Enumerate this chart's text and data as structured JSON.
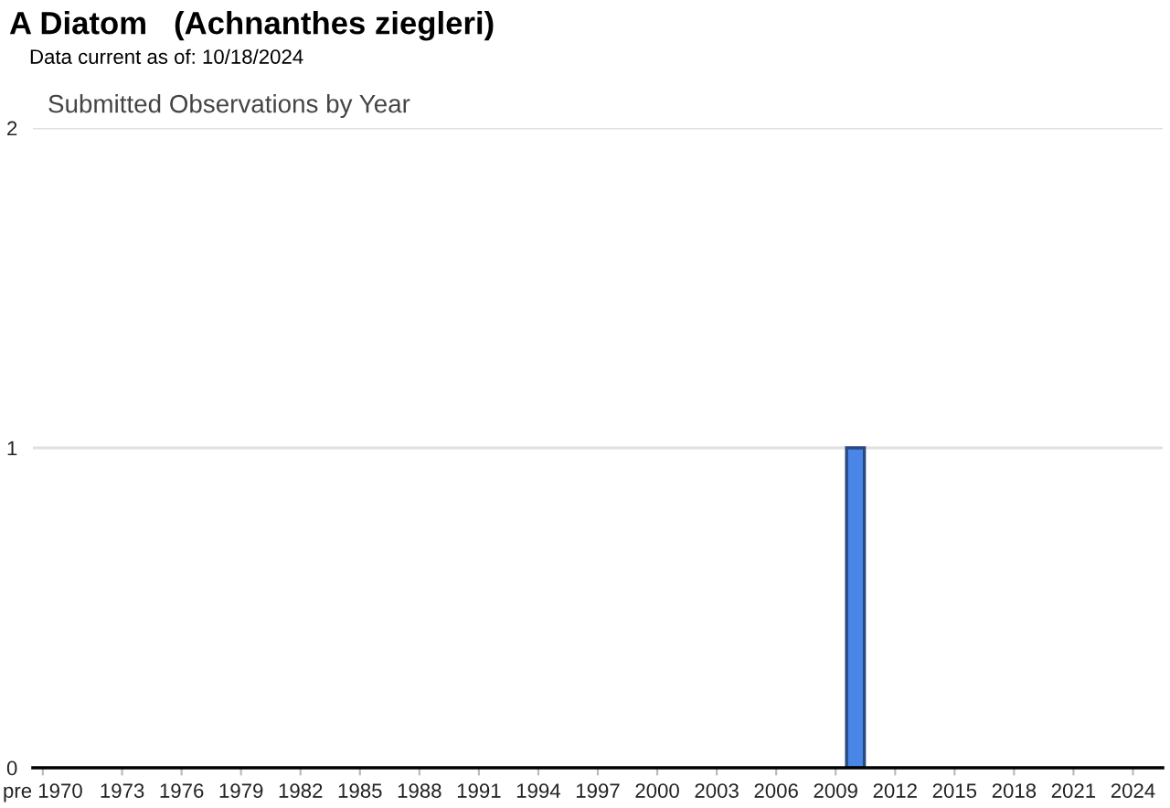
{
  "chart_data": {
    "type": "bar",
    "title": "A Diatom   (Achnanthes ziegleri)",
    "subtitle": "Submitted Observations by Year",
    "annotations": [
      "Data current as of: 10/18/2024"
    ],
    "x": [
      2010
    ],
    "values": [
      1
    ],
    "color": "#4a86e8",
    "xlim": [
      1968.5,
      2025.5
    ],
    "xticks": [
      {
        "value": 1969,
        "label": "pre 1970"
      },
      1973,
      1976,
      1979,
      1982,
      1985,
      1988,
      1991,
      1994,
      1997,
      2000,
      2003,
      2006,
      2009,
      2012,
      2015,
      2018,
      2021,
      2024
    ],
    "ylim": [
      0,
      2
    ],
    "yticks": [
      0,
      1,
      2
    ],
    "grid": "y"
  }
}
